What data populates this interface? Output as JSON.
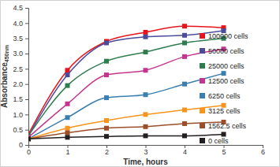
{
  "chart_data": {
    "type": "line",
    "x_label": "Time, hours",
    "y_label": "Absorbance450nm",
    "x": [
      0,
      1,
      2,
      3,
      4,
      5
    ],
    "xlim": [
      0,
      6
    ],
    "xticks": [
      0,
      1,
      2,
      3,
      4,
      5,
      6
    ],
    "ylim": [
      0,
      4.5
    ],
    "yticks": [
      0,
      0.5,
      {
        "value": 1,
        "label": "1.0"
      },
      1.5,
      {
        "value": 2,
        "label": "2.0"
      },
      2.5,
      {
        "value": 3,
        "label": "3.0"
      },
      3.5,
      {
        "value": 4,
        "label": "4.0"
      },
      4.5
    ],
    "legend": "right",
    "marker": "square",
    "grid": false,
    "series": [
      {
        "name": "100000 cells",
        "color": "#e8141c",
        "values": [
          0.35,
          2.45,
          3.4,
          3.7,
          3.9,
          3.85
        ]
      },
      {
        "name": "50000 cells",
        "color": "#4b4c9c",
        "values": [
          0.3,
          2.3,
          3.35,
          3.55,
          3.6,
          3.75
        ]
      },
      {
        "name": "25000 cells",
        "color": "#2e7d4f",
        "values": [
          0.3,
          1.95,
          2.75,
          3.05,
          3.35,
          3.5
        ]
      },
      {
        "name": "12500 cells",
        "color": "#c5358d",
        "values": [
          0.25,
          1.35,
          2.3,
          2.45,
          2.9,
          3.15
        ]
      },
      {
        "name": "6250 cells",
        "color": "#3a7fb0",
        "values": [
          0.2,
          0.9,
          1.55,
          1.65,
          2.0,
          2.35
        ]
      },
      {
        "name": "3125 cells",
        "color": "#f7941d",
        "values": [
          0.2,
          0.55,
          0.8,
          1.0,
          1.15,
          1.3
        ]
      },
      {
        "name": "1562.5 cells",
        "color": "#9c4e2a",
        "values": [
          0.2,
          0.4,
          0.55,
          0.6,
          0.7,
          0.75
        ]
      },
      {
        "name": "0 cells",
        "color": "#231f20",
        "values": [
          0.2,
          0.25,
          0.28,
          0.3,
          0.3,
          0.35
        ]
      }
    ]
  }
}
